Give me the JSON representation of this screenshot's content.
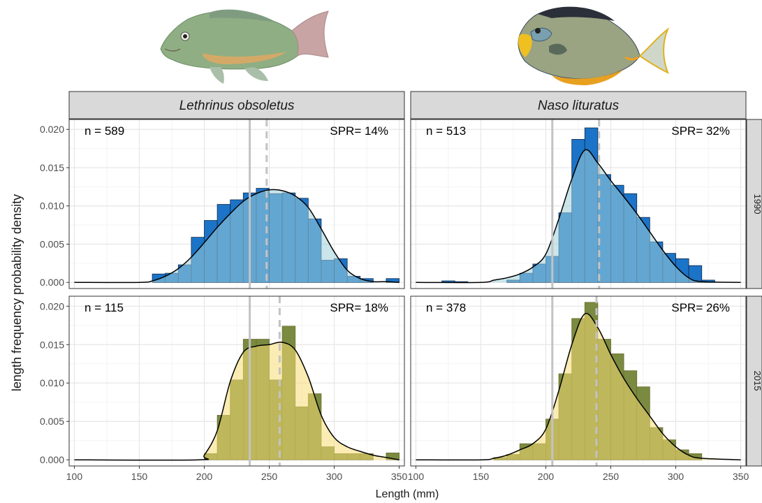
{
  "strips": {
    "columns": [
      "Lethrinus obsoletus",
      "Naso lituratus"
    ],
    "rows": [
      "1990",
      "2015"
    ]
  },
  "axes": {
    "xlabel": "Length (mm)",
    "ylabel": "length frequency probability density",
    "xlim": [
      100,
      350
    ],
    "ylim": [
      0,
      0.021
    ],
    "xticks": [
      100,
      150,
      200,
      250,
      300,
      350
    ],
    "xtick_labels": [
      "100",
      "150",
      "200",
      "250",
      "300",
      "350"
    ],
    "yticks": [
      0,
      0.005,
      0.01,
      0.015,
      0.02
    ],
    "ytick_labels": [
      "0.000",
      "0.005",
      "0.010",
      "0.015",
      "0.020"
    ]
  },
  "icons": [
    "lethrinus-fish-icon",
    "naso-fish-icon"
  ],
  "colors": {
    "bar_fill": "#1b74c7",
    "density_1990": "#9fd0da",
    "density_2015": "#f5dc73",
    "overlap_2015": "#7a8a40",
    "reference_line": "#c3c3c3",
    "strip_bg": "#d9d9d9"
  },
  "chart_data": {
    "type": "bar",
    "bin_width": 10,
    "bin_starts": [
      100,
      110,
      120,
      130,
      140,
      150,
      160,
      170,
      180,
      190,
      200,
      210,
      220,
      230,
      240,
      250,
      260,
      270,
      280,
      290,
      300,
      310,
      320,
      330,
      340
    ],
    "panels": [
      {
        "species": "Lethrinus obsoletus",
        "year": "1990",
        "n_label": "n = 589",
        "spr_label": "SPR= 14%",
        "vline_solid": 235,
        "vline_dashed": 248,
        "values": [
          0,
          0,
          0,
          0,
          0,
          0,
          0.0011,
          0.0012,
          0.0023,
          0.0059,
          0.0081,
          0.0102,
          0.0108,
          0.0117,
          0.0123,
          0.0116,
          0.0117,
          0.011,
          0.0083,
          0.0029,
          0.0031,
          0.0008,
          0.0005,
          0,
          0.0005
        ],
        "density": [
          [
            100,
            0
          ],
          [
            150,
            0
          ],
          [
            160,
            0.0002
          ],
          [
            170,
            0.0008
          ],
          [
            180,
            0.0018
          ],
          [
            190,
            0.0033
          ],
          [
            200,
            0.0052
          ],
          [
            210,
            0.0072
          ],
          [
            220,
            0.009
          ],
          [
            230,
            0.0106
          ],
          [
            240,
            0.0116
          ],
          [
            250,
            0.0121
          ],
          [
            260,
            0.012
          ],
          [
            270,
            0.0113
          ],
          [
            280,
            0.0098
          ],
          [
            290,
            0.007
          ],
          [
            300,
            0.004
          ],
          [
            310,
            0.0016
          ],
          [
            320,
            0.0005
          ],
          [
            330,
            0.0001
          ],
          [
            340,
            0.0001
          ],
          [
            350,
            0
          ]
        ]
      },
      {
        "species": "Naso lituratus",
        "year": "1990",
        "n_label": "n = 513",
        "spr_label": "SPR= 32%",
        "vline_solid": 205,
        "vline_dashed": 241,
        "values": [
          0,
          0,
          0.0002,
          0.0001,
          0,
          0,
          0,
          0.0003,
          0.0012,
          0.0024,
          0.0034,
          0.0091,
          0.0187,
          0.0202,
          0.0141,
          0.0127,
          0.0116,
          0.0085,
          0.0053,
          0.0038,
          0.0031,
          0.0022,
          0.0003,
          0,
          0
        ],
        "density": [
          [
            100,
            0
          ],
          [
            150,
            0
          ],
          [
            160,
            0.0003
          ],
          [
            170,
            0.0006
          ],
          [
            180,
            0.0011
          ],
          [
            190,
            0.002
          ],
          [
            200,
            0.0037
          ],
          [
            210,
            0.0083
          ],
          [
            220,
            0.0135
          ],
          [
            230,
            0.0173
          ],
          [
            240,
            0.0156
          ],
          [
            250,
            0.0133
          ],
          [
            260,
            0.0112
          ],
          [
            270,
            0.009
          ],
          [
            280,
            0.0066
          ],
          [
            290,
            0.0042
          ],
          [
            300,
            0.0021
          ],
          [
            310,
            0.0006
          ],
          [
            320,
            0.0001
          ],
          [
            350,
            0
          ]
        ]
      },
      {
        "species": "Lethrinus obsoletus",
        "year": "2015",
        "n_label": "n = 115",
        "spr_label": "SPR= 18%",
        "vline_solid": 235,
        "vline_dashed": 258,
        "values": [
          0,
          0,
          0,
          0,
          0,
          0,
          0,
          0,
          0,
          0,
          0.0008,
          0.0058,
          0.0104,
          0.0157,
          0.0157,
          0.0104,
          0.0174,
          0.0069,
          0.0086,
          0.0017,
          0.0008,
          0.0008,
          0.0008,
          0,
          0.0009
        ],
        "density": [
          [
            100,
            0
          ],
          [
            195,
            0
          ],
          [
            200,
            0.0006
          ],
          [
            210,
            0.0038
          ],
          [
            220,
            0.0102
          ],
          [
            230,
            0.014
          ],
          [
            240,
            0.0148
          ],
          [
            250,
            0.015
          ],
          [
            260,
            0.0153
          ],
          [
            270,
            0.0143
          ],
          [
            280,
            0.0108
          ],
          [
            290,
            0.0058
          ],
          [
            300,
            0.0029
          ],
          [
            310,
            0.0017
          ],
          [
            320,
            0.0011
          ],
          [
            330,
            0.0006
          ],
          [
            340,
            0.0003
          ],
          [
            350,
            0
          ]
        ]
      },
      {
        "species": "Naso lituratus",
        "year": "2015",
        "n_label": "n = 378",
        "spr_label": "SPR= 26%",
        "vline_solid": 205,
        "vline_dashed": 239,
        "values": [
          0,
          0,
          0,
          0,
          0,
          0,
          0.0003,
          0.0007,
          0.0021,
          0.0021,
          0.0053,
          0.0112,
          0.0184,
          0.0205,
          0.0157,
          0.0138,
          0.0116,
          0.0095,
          0.0042,
          0.0026,
          0.0013,
          0.0008,
          0,
          0,
          0
        ],
        "density": [
          [
            100,
            0
          ],
          [
            150,
            0
          ],
          [
            160,
            0.0002
          ],
          [
            170,
            0.0006
          ],
          [
            180,
            0.0013
          ],
          [
            190,
            0.0021
          ],
          [
            200,
            0.004
          ],
          [
            210,
            0.009
          ],
          [
            220,
            0.015
          ],
          [
            230,
            0.019
          ],
          [
            240,
            0.0172
          ],
          [
            250,
            0.0137
          ],
          [
            260,
            0.0106
          ],
          [
            270,
            0.008
          ],
          [
            280,
            0.0057
          ],
          [
            290,
            0.0034
          ],
          [
            300,
            0.0017
          ],
          [
            310,
            0.0006
          ],
          [
            320,
            0.0002
          ],
          [
            350,
            0
          ]
        ]
      }
    ]
  }
}
